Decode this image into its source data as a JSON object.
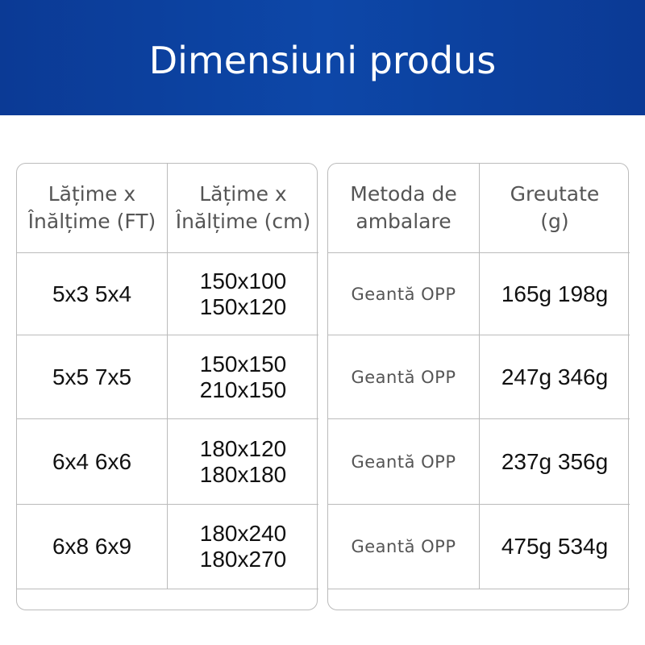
{
  "header": {
    "title": "Dimensiuni produs"
  },
  "tables": [
    {
      "headers": [
        "Lățime x\nÎnălțime (FT)",
        "Lățime x\nÎnălțime (cm)"
      ],
      "rows": [
        [
          "5x3 5x4",
          "150x100 150x120"
        ],
        [
          "5x5 7x5",
          "150x150 210x150"
        ],
        [
          "6x4 6x6",
          "180x120 180x180"
        ],
        [
          "6x8 6x9",
          "180x240 180x270"
        ]
      ]
    },
    {
      "headers": [
        "Metoda de\nambalare",
        "Greutate\n(g)"
      ],
      "rows": [
        [
          "Geantă OPP",
          "165g 198g"
        ],
        [
          "Geantă OPP",
          "247g 346g"
        ],
        [
          "Geantă OPP",
          "237g 356g"
        ],
        [
          "Geantă OPP",
          "475g 534g"
        ]
      ]
    }
  ]
}
